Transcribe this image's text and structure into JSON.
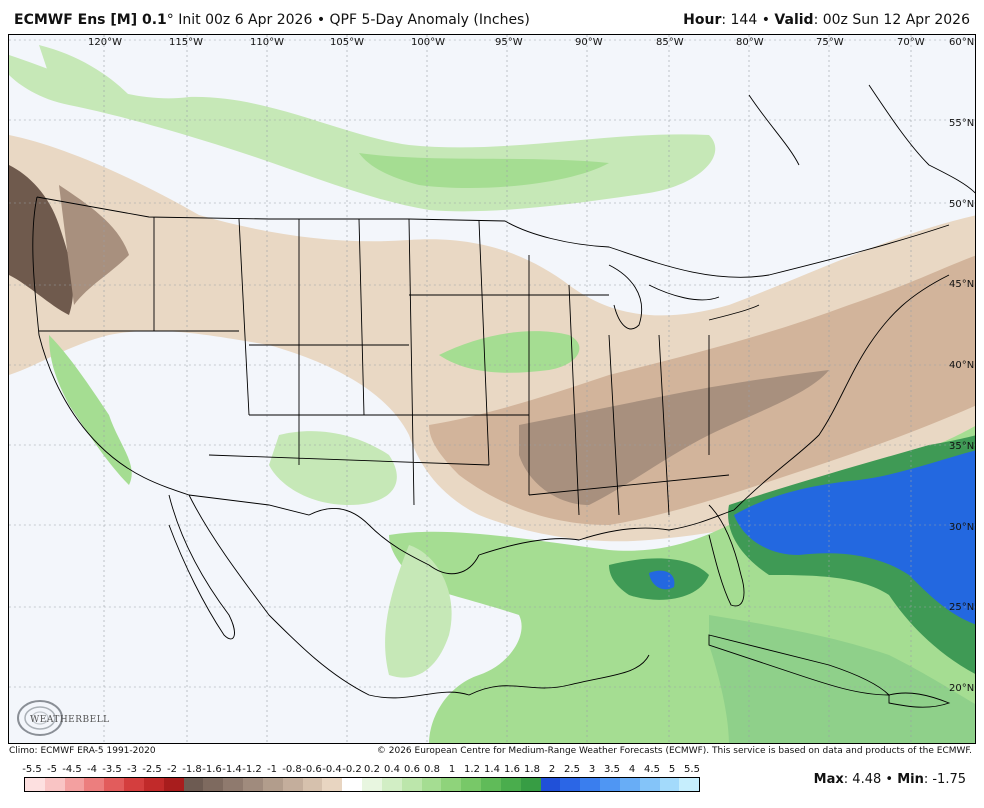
{
  "header": {
    "model": "ECMWF Ens [M] 0.1",
    "deg": "°",
    "init": "Init 00z 6 Apr 2026",
    "bullet": "•",
    "product": "QPF 5-Day Anomaly (Inches)",
    "hour_label": "Hour",
    "hour_value": ": 144",
    "valid_label": "Valid",
    "valid_value": ": 00z Sun 12 Apr 2026"
  },
  "map": {
    "lon_labels": [
      "120°W",
      "115°W",
      "110°W",
      "105°W",
      "100°W",
      "95°W",
      "90°W",
      "85°W",
      "80°W",
      "75°W",
      "70°W"
    ],
    "lat_labels": [
      "60°N",
      "55°N",
      "50°N",
      "45°N",
      "40°N",
      "35°N",
      "30°N",
      "25°N",
      "20°N"
    ],
    "colors": {
      "ocean": "#f3f6fb",
      "dry_light": "#e9d8c4",
      "dry_mid": "#d2b49b",
      "dry_dark": "#a8907e",
      "dry_darkest": "#6f5a4d",
      "wet_light": "#c6e8b7",
      "wet_mid": "#8fd08a",
      "wet_dark": "#3f9a55",
      "blue": "#2368e0",
      "blue_light": "#5a9ff0"
    }
  },
  "logo": {
    "text": "WEATHERBELL"
  },
  "footer": {
    "climo": "Climo: ECMWF ERA-5 1991-2020",
    "copyright": "© 2026 European Centre for Medium-Range Weather Forecasts (ECMWF). This service is based on data and products of the ECMWF."
  },
  "colorbar": {
    "labels": [
      "-5.5",
      "-5",
      "-4.5",
      "-4",
      "-3.5",
      "-3",
      "-2.5",
      "-2",
      "-1.8",
      "-1.6",
      "-1.4",
      "-1.2",
      "-1",
      "-0.8",
      "-0.6",
      "-0.4",
      "-0.2",
      "0.2",
      "0.4",
      "0.6",
      "0.8",
      "1",
      "1.2",
      "1.4",
      "1.6",
      "1.8",
      "2",
      "2.5",
      "3",
      "3.5",
      "4",
      "4.5",
      "5",
      "5.5"
    ],
    "colors": [
      "#fde0e0",
      "#f9c4c4",
      "#f3a0a0",
      "#ec7e7e",
      "#e25c5c",
      "#d43e3e",
      "#c12a2a",
      "#a81d1d",
      "#6d5b52",
      "#7e6a5f",
      "#8f7a6e",
      "#a08b7d",
      "#b29d8c",
      "#c4ae9c",
      "#d6c1ad",
      "#e8d5c1",
      "#ffffff",
      "#e8f6e0",
      "#d2eec5",
      "#bce6ab",
      "#a5dd92",
      "#8fd37b",
      "#78c868",
      "#60bb59",
      "#4aad4d",
      "#379d44",
      "#2050d8",
      "#2b66e6",
      "#3a7eee",
      "#4f96f3",
      "#68adf6",
      "#84c4f9",
      "#a3dafb",
      "#c6eefd"
    ]
  },
  "stats": {
    "max_label": "Max",
    "max_value": ": 4.48",
    "sep": " • ",
    "min_label": "Min",
    "min_value": ": -1.75"
  }
}
